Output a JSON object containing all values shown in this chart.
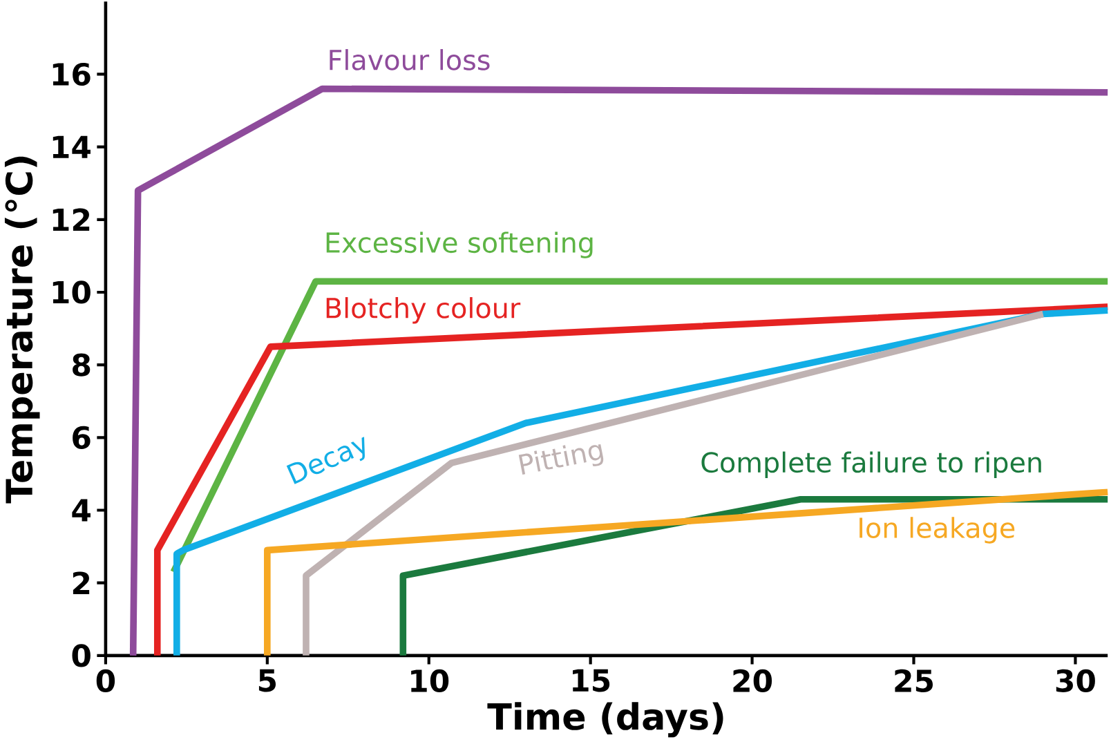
{
  "chart_data": {
    "type": "line",
    "xlabel": "Time (days)",
    "ylabel": "Temperature (°C)",
    "xlim": [
      0,
      31
    ],
    "ylim": [
      0,
      18
    ],
    "xticks": [
      0,
      5,
      10,
      15,
      20,
      25,
      30
    ],
    "yticks": [
      0,
      2,
      4,
      6,
      8,
      10,
      12,
      14,
      16
    ],
    "series": [
      {
        "name": "Flavour loss",
        "color": "#8e4b9b",
        "x": [
          0.85,
          1.0,
          6.7,
          31
        ],
        "values": [
          0,
          12.8,
          15.6,
          15.5
        ]
      },
      {
        "name": "Excessive softening",
        "color": "#5db444",
        "x": [
          2.1,
          6.5,
          31
        ],
        "values": [
          2.3,
          10.3,
          10.3
        ]
      },
      {
        "name": "Blotchy colour",
        "color": "#e52322",
        "x": [
          1.6,
          1.6,
          5.1,
          31
        ],
        "values": [
          0,
          2.9,
          8.5,
          9.6
        ]
      },
      {
        "name": "Decay",
        "color": "#12aee6",
        "x": [
          2.2,
          2.2,
          2.4,
          13,
          29,
          31
        ],
        "values": [
          0,
          2.8,
          2.9,
          6.4,
          9.4,
          9.5
        ]
      },
      {
        "name": "Pitting",
        "color": "#bfb2b2",
        "x": [
          6.2,
          6.2,
          10.7,
          29
        ],
        "values": [
          0,
          2.2,
          5.3,
          9.4
        ]
      },
      {
        "name": "Complete failure to ripen",
        "color": "#1b7a3e",
        "x": [
          9.2,
          9.2,
          21.5,
          31
        ],
        "values": [
          0,
          2.2,
          4.3,
          4.3
        ]
      },
      {
        "name": "Ion leakage",
        "color": "#f6a823",
        "x": [
          5.0,
          5.0,
          31
        ],
        "values": [
          0,
          2.9,
          4.5
        ]
      }
    ]
  }
}
